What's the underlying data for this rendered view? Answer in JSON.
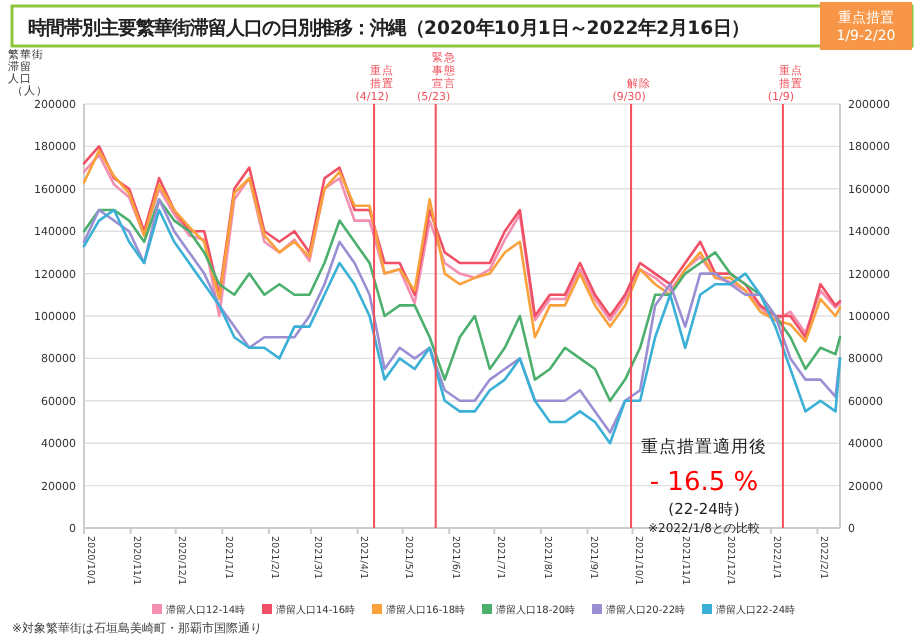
{
  "chart_data": {
    "type": "line",
    "title": "時間帯別主要繁華街滞留人口の日別推移：沖縄（2020年10月1日～2022年2月16日）",
    "ylabel": "繁華街滞留人口（人）",
    "x": [
      "2020-10-01",
      "2020-10-11",
      "2020-10-21",
      "2020-10-31",
      "2020-11-10",
      "2020-11-20",
      "2020-11-30",
      "2020-12-10",
      "2020-12-20",
      "2020-12-30",
      "2021-01-09",
      "2021-01-19",
      "2021-01-29",
      "2021-02-08",
      "2021-02-18",
      "2021-02-28",
      "2021-03-10",
      "2021-03-20",
      "2021-03-30",
      "2021-04-09",
      "2021-04-19",
      "2021-04-29",
      "2021-05-09",
      "2021-05-19",
      "2021-05-29",
      "2021-06-08",
      "2021-06-18",
      "2021-06-28",
      "2021-07-08",
      "2021-07-18",
      "2021-07-28",
      "2021-08-07",
      "2021-08-17",
      "2021-08-27",
      "2021-09-06",
      "2021-09-16",
      "2021-09-26",
      "2021-10-06",
      "2021-10-16",
      "2021-10-26",
      "2021-11-05",
      "2021-11-15",
      "2021-11-25",
      "2021-12-05",
      "2021-12-15",
      "2021-12-25",
      "2022-01-04",
      "2022-01-14",
      "2022-01-24",
      "2022-02-03",
      "2022-02-13",
      "2022-02-16"
    ],
    "series": [
      {
        "name": "滞留人口12-14時",
        "color": "#f48fb1",
        "values": [
          168000,
          176000,
          162000,
          156000,
          138000,
          160000,
          148000,
          138000,
          136000,
          100000,
          155000,
          165000,
          135000,
          130000,
          136000,
          126000,
          160000,
          165000,
          145000,
          145000,
          120000,
          122000,
          106000,
          145000,
          125000,
          120000,
          118000,
          122000,
          136000,
          148000,
          98000,
          108000,
          108000,
          122000,
          108000,
          98000,
          108000,
          122000,
          118000,
          112000,
          122000,
          128000,
          118000,
          116000,
          112000,
          104000,
          98000,
          102000,
          92000,
          112000,
          104000,
          106000
        ]
      },
      {
        "name": "滞留人口14-16時",
        "color": "#ef5066",
        "values": [
          172000,
          180000,
          165000,
          160000,
          140000,
          165000,
          150000,
          140000,
          140000,
          110000,
          160000,
          170000,
          140000,
          135000,
          140000,
          130000,
          165000,
          170000,
          150000,
          150000,
          125000,
          125000,
          110000,
          150000,
          130000,
          125000,
          125000,
          125000,
          140000,
          150000,
          100000,
          110000,
          110000,
          125000,
          110000,
          100000,
          110000,
          125000,
          120000,
          115000,
          125000,
          135000,
          120000,
          120000,
          115000,
          105000,
          100000,
          100000,
          90000,
          115000,
          105000,
          107000
        ]
      },
      {
        "name": "滞留人口16-18時",
        "color": "#f9a13a",
        "values": [
          163000,
          178000,
          166000,
          158000,
          138000,
          162000,
          150000,
          142000,
          135000,
          108000,
          158000,
          165000,
          138000,
          130000,
          135000,
          128000,
          160000,
          168000,
          152000,
          152000,
          120000,
          122000,
          112000,
          155000,
          120000,
          115000,
          118000,
          120000,
          130000,
          135000,
          90000,
          105000,
          105000,
          120000,
          105000,
          95000,
          105000,
          122000,
          115000,
          110000,
          122000,
          130000,
          118000,
          118000,
          112000,
          102000,
          98000,
          96000,
          88000,
          108000,
          100000,
          104000
        ]
      },
      {
        "name": "滞留人口18-20時",
        "color": "#4caf6d",
        "values": [
          140000,
          150000,
          150000,
          145000,
          135000,
          155000,
          145000,
          140000,
          130000,
          115000,
          110000,
          120000,
          110000,
          115000,
          110000,
          110000,
          125000,
          145000,
          135000,
          125000,
          100000,
          105000,
          105000,
          90000,
          70000,
          90000,
          100000,
          75000,
          85000,
          100000,
          70000,
          75000,
          85000,
          80000,
          75000,
          60000,
          70000,
          85000,
          110000,
          110000,
          120000,
          125000,
          130000,
          120000,
          115000,
          110000,
          100000,
          90000,
          75000,
          85000,
          82000,
          90000
        ]
      },
      {
        "name": "滞留人口20-22時",
        "color": "#9b8fd4",
        "values": [
          135000,
          150000,
          145000,
          140000,
          125000,
          155000,
          140000,
          130000,
          120000,
          105000,
          95000,
          85000,
          90000,
          90000,
          90000,
          100000,
          115000,
          135000,
          125000,
          110000,
          75000,
          85000,
          80000,
          85000,
          65000,
          60000,
          60000,
          70000,
          75000,
          80000,
          60000,
          60000,
          60000,
          65000,
          55000,
          45000,
          60000,
          65000,
          105000,
          115000,
          95000,
          120000,
          120000,
          115000,
          110000,
          110000,
          100000,
          80000,
          70000,
          70000,
          62000,
          80000
        ]
      },
      {
        "name": "滞留人口22-24時",
        "color": "#3bb0d6",
        "values": [
          133000,
          145000,
          150000,
          135000,
          125000,
          150000,
          135000,
          125000,
          115000,
          105000,
          90000,
          85000,
          85000,
          80000,
          95000,
          95000,
          110000,
          125000,
          115000,
          100000,
          70000,
          80000,
          75000,
          85000,
          60000,
          55000,
          55000,
          65000,
          70000,
          80000,
          60000,
          50000,
          50000,
          55000,
          50000,
          40000,
          60000,
          60000,
          90000,
          110000,
          85000,
          110000,
          115000,
          115000,
          120000,
          110000,
          95000,
          75000,
          55000,
          60000,
          55000,
          80000
        ]
      }
    ],
    "xlim": [
      "2020-10-01",
      "2022-02-16"
    ],
    "xticks": [
      {
        "value": "2020-10-01",
        "label": "2020/10/1"
      },
      {
        "value": "2020-11-01",
        "label": "2020/11/1"
      },
      {
        "value": "2020-12-01",
        "label": "2020/12/1"
      },
      {
        "value": "2021-01-01",
        "label": "2021/1/1"
      },
      {
        "value": "2021-02-01",
        "label": "2021/2/1"
      },
      {
        "value": "2021-03-01",
        "label": "2021/3/1"
      },
      {
        "value": "2021-04-01",
        "label": "2021/4/1"
      },
      {
        "value": "2021-05-01",
        "label": "2021/5/1"
      },
      {
        "value": "2021-06-01",
        "label": "2021/6/1"
      },
      {
        "value": "2021-07-01",
        "label": "2021/7/1"
      },
      {
        "value": "2021-08-01",
        "label": "2021/8/1"
      },
      {
        "value": "2021-09-01",
        "label": "2021/9/1"
      },
      {
        "value": "2021-10-01",
        "label": "2021/10/1"
      },
      {
        "value": "2021-11-01",
        "label": "2021/11/1"
      },
      {
        "value": "2021-12-01",
        "label": "2021/12/1"
      },
      {
        "value": "2022-01-01",
        "label": "2022/1/1"
      },
      {
        "value": "2022-02-01",
        "label": "2022/2/1"
      }
    ],
    "ylim": [
      0,
      200000
    ],
    "yticks": [
      0,
      20000,
      40000,
      60000,
      80000,
      100000,
      120000,
      140000,
      160000,
      180000,
      200000
    ],
    "y2lim": [
      0,
      200000
    ],
    "y2ticks": [
      0,
      20000,
      40000,
      60000,
      80000,
      100000,
      120000,
      140000,
      160000,
      180000,
      200000
    ],
    "ref_lines": [
      {
        "axis": "x",
        "value": "2021-04-12",
        "label": "重点措置(4/12)",
        "color": "#f0505a"
      },
      {
        "axis": "x",
        "value": "2021-05-23",
        "label": "緊急事態宣言(5/23)",
        "color": "#f0505a"
      },
      {
        "axis": "x",
        "value": "2021-09-30",
        "label": "解除(9/30)",
        "color": "#f0505a"
      },
      {
        "axis": "x",
        "value": "2022-01-09",
        "label": "重点措置(1/9)",
        "color": "#f0505a"
      }
    ],
    "annotations": [
      "重点措置適用後",
      "- 16.5 %",
      "(22-24時)",
      "※2022/1/8との比較",
      "重点措置 1/9-2/20",
      "※対象繁華街は石垣島美崎町・那覇市国際通り"
    ],
    "grid": "y",
    "legend": "bottom",
    "marker": "none",
    "line_style": "solid"
  }
}
